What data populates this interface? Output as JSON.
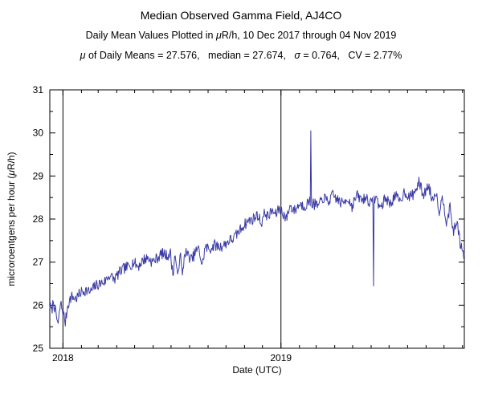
{
  "header": {
    "title": "Median Observed Gamma Field, AJ4CO",
    "subtitle_parts": {
      "pre": "Daily Mean Values Plotted in ",
      "mu": "μ",
      "post": "R/h, 10 Dec 2017 through 04 Nov 2019"
    },
    "stats_parts": {
      "mu": "μ",
      "mid": " of Daily Means = 27.576,   median = 27.674,   ",
      "sigma": "σ",
      "end": " = 0.764,   CV = 2.77%"
    }
  },
  "chart_data": {
    "type": "line",
    "title": "Median Observed Gamma Field, AJ4CO",
    "subtitle": "Daily Mean Values Plotted in μR/h, 10 Dec 2017 through 04 Nov 2019",
    "stats": {
      "mean_of_daily_means": 27.576,
      "median": 27.674,
      "sigma": 0.764,
      "cv_percent": 2.77
    },
    "xlabel": "Date (UTC)",
    "ylabel": "microroentgens per hour (μR/h)",
    "ylabel_parts": {
      "pre": "microroentgens per hour (",
      "mu": "μ",
      "post": "R/h)"
    },
    "ylim": [
      25,
      31
    ],
    "yticks": [
      25,
      26,
      27,
      28,
      29,
      30,
      31
    ],
    "x_start_date": "10 Dec 2017",
    "x_end_date": "04 Nov 2019",
    "x_domain_days": [
      0,
      694
    ],
    "year_marks": [
      {
        "label": "2018",
        "day": 22
      },
      {
        "label": "2019",
        "day": 387
      }
    ],
    "month_tick_days": [
      53,
      81,
      112,
      142,
      173,
      203,
      234,
      265,
      295,
      326,
      356,
      418,
      446,
      477,
      507,
      538,
      568,
      599,
      630,
      660,
      691
    ],
    "grid": "vertical-lines-at-year-starts",
    "legend": "none",
    "line_color": "#3a3aa5",
    "noise_amplitude": 0.13,
    "series_keypoints": [
      [
        0,
        26.0
      ],
      [
        3,
        25.85
      ],
      [
        6,
        26.1
      ],
      [
        10,
        25.8
      ],
      [
        14,
        25.55
      ],
      [
        18,
        26.05
      ],
      [
        22,
        25.85
      ],
      [
        26,
        25.6
      ],
      [
        30,
        26.0
      ],
      [
        36,
        26.2
      ],
      [
        44,
        26.15
      ],
      [
        52,
        26.3
      ],
      [
        60,
        26.35
      ],
      [
        68,
        26.3
      ],
      [
        76,
        26.45
      ],
      [
        84,
        26.5
      ],
      [
        92,
        26.55
      ],
      [
        100,
        26.7
      ],
      [
        108,
        26.6
      ],
      [
        116,
        26.75
      ],
      [
        124,
        26.85
      ],
      [
        132,
        26.9
      ],
      [
        140,
        27.0
      ],
      [
        148,
        26.9
      ],
      [
        156,
        27.05
      ],
      [
        164,
        27.1
      ],
      [
        172,
        27.0
      ],
      [
        180,
        27.1
      ],
      [
        188,
        27.2
      ],
      [
        196,
        27.15
      ],
      [
        202,
        27.2
      ],
      [
        206,
        26.7
      ],
      [
        210,
        27.2
      ],
      [
        214,
        26.6
      ],
      [
        218,
        27.25
      ],
      [
        222,
        26.65
      ],
      [
        226,
        27.25
      ],
      [
        232,
        27.15
      ],
      [
        238,
        27.05
      ],
      [
        244,
        27.25
      ],
      [
        250,
        27.3
      ],
      [
        255,
        26.9
      ],
      [
        260,
        27.35
      ],
      [
        268,
        27.3
      ],
      [
        276,
        27.4
      ],
      [
        284,
        27.35
      ],
      [
        292,
        27.4
      ],
      [
        300,
        27.5
      ],
      [
        308,
        27.55
      ],
      [
        316,
        27.7
      ],
      [
        324,
        27.85
      ],
      [
        332,
        27.95
      ],
      [
        340,
        28.0
      ],
      [
        348,
        28.1
      ],
      [
        354,
        27.9
      ],
      [
        360,
        28.15
      ],
      [
        366,
        28.05
      ],
      [
        372,
        28.2
      ],
      [
        378,
        28.1
      ],
      [
        384,
        28.25
      ],
      [
        390,
        28.15
      ],
      [
        396,
        28.0
      ],
      [
        402,
        28.3
      ],
      [
        410,
        28.2
      ],
      [
        418,
        28.35
      ],
      [
        426,
        28.3
      ],
      [
        434,
        28.4
      ],
      [
        442,
        28.35
      ],
      [
        450,
        28.3
      ],
      [
        458,
        28.5
      ],
      [
        466,
        28.4
      ],
      [
        474,
        28.55
      ],
      [
        482,
        28.45
      ],
      [
        490,
        28.35
      ],
      [
        498,
        28.5
      ],
      [
        506,
        28.3
      ],
      [
        514,
        28.55
      ],
      [
        522,
        28.45
      ],
      [
        530,
        28.5
      ],
      [
        538,
        28.35
      ],
      [
        546,
        28.5
      ],
      [
        554,
        28.25
      ],
      [
        562,
        28.5
      ],
      [
        570,
        28.35
      ],
      [
        578,
        28.55
      ],
      [
        586,
        28.4
      ],
      [
        594,
        28.65
      ],
      [
        602,
        28.5
      ],
      [
        610,
        28.6
      ],
      [
        618,
        28.85
      ],
      [
        626,
        28.55
      ],
      [
        634,
        28.8
      ],
      [
        640,
        28.45
      ],
      [
        646,
        28.65
      ],
      [
        652,
        28.2
      ],
      [
        658,
        28.5
      ],
      [
        664,
        27.95
      ],
      [
        670,
        28.25
      ],
      [
        676,
        27.7
      ],
      [
        682,
        27.95
      ],
      [
        688,
        27.35
      ],
      [
        694,
        27.15
      ]
    ],
    "anomalies": [
      {
        "day": 437,
        "value": 30.05
      },
      {
        "day": 542,
        "value": 26.45
      }
    ]
  }
}
